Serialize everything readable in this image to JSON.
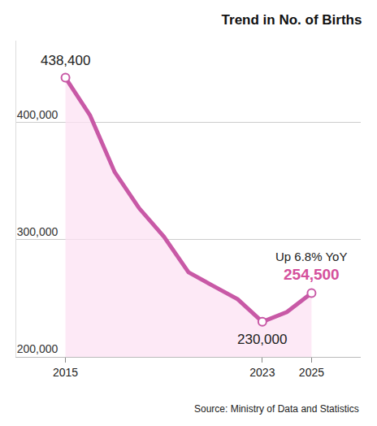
{
  "chart_data": {
    "type": "line",
    "title": "Trend in No. of Births",
    "source": "Source: Ministry of Data and Statistics",
    "x": [
      2015,
      2016,
      2017,
      2018,
      2019,
      2020,
      2021,
      2022,
      2023,
      2024,
      2025
    ],
    "values": [
      438400,
      406200,
      357800,
      326800,
      302700,
      272300,
      260600,
      249200,
      230000,
      238300,
      254500
    ],
    "color": "#c859a6",
    "xlim": [
      2013,
      2027
    ],
    "xticks": [
      2015,
      2023,
      2025
    ],
    "ylim": [
      200000,
      470000
    ],
    "yticks": [
      {
        "value": 200000,
        "label": "200,000"
      },
      {
        "value": 300000,
        "label": "300,000"
      },
      {
        "value": 400000,
        "label": "400,000"
      }
    ],
    "grid": true,
    "annotations": [
      {
        "x": 2015,
        "y": 438400,
        "text": "438,400"
      },
      {
        "x": 2023,
        "y": 230000,
        "text": "230,000"
      },
      {
        "x": 2025,
        "y": 254500,
        "text": "254,500",
        "caption": "Up 6.8% YoY"
      }
    ]
  }
}
